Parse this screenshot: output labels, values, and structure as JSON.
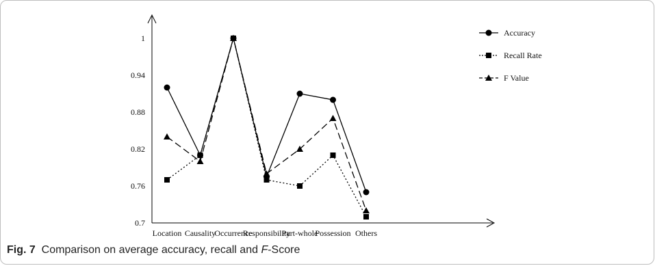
{
  "chart_data": {
    "type": "line",
    "categories": [
      "Location",
      "Causality",
      "Occurrence",
      "Responsibility",
      "Part-whole",
      "Possession",
      "Others"
    ],
    "y_ticks": [
      "0.7",
      "0.76",
      "0.82",
      "0.88",
      "0.94",
      "1"
    ],
    "ylim": [
      0.7,
      1.0
    ],
    "legend_position": "top-right",
    "series": [
      {
        "name": "Accuracy",
        "values": [
          0.92,
          0.81,
          1.0,
          0.775,
          0.91,
          0.9,
          0.75
        ],
        "line_style": "solid",
        "marker": "circle",
        "legend_label": "Accuracy"
      },
      {
        "name": "Recall Rate",
        "values": [
          0.77,
          0.81,
          1.0,
          0.77,
          0.76,
          0.81,
          0.71
        ],
        "line_style": "dotted",
        "marker": "square",
        "legend_label": "Recall Rate"
      },
      {
        "name": "F Value",
        "values": [
          0.84,
          0.8,
          1.0,
          0.78,
          0.82,
          0.87,
          0.72
        ],
        "line_style": "dashed",
        "marker": "triangle",
        "legend_label": "F Value"
      }
    ],
    "color": "#000000"
  },
  "caption": {
    "label": "Fig. 7",
    "text": "Comparison on average accuracy, recall and ",
    "fscore": "F",
    "text_end": "-Score"
  }
}
